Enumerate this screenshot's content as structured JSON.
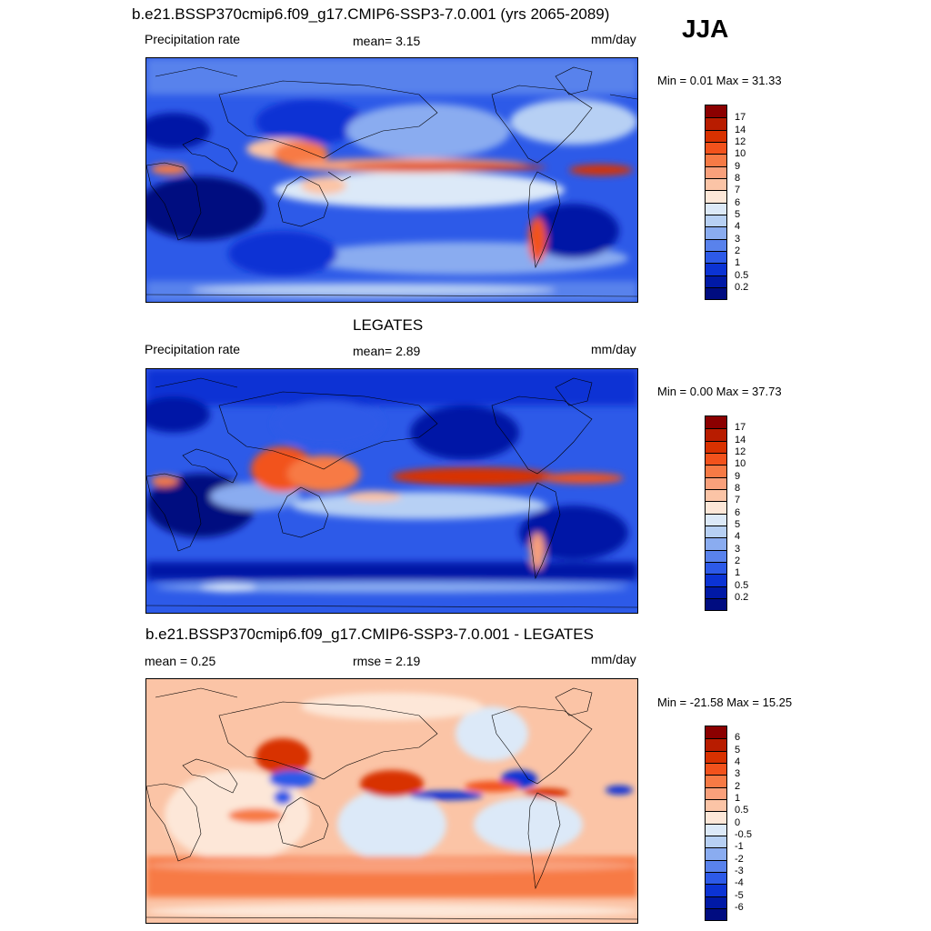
{
  "season": "JJA",
  "panels": [
    {
      "title": "b.e21.BSSP370cmip6.f09_g17.CMIP6-SSP3-7.0.001 (yrs 2065-2089)",
      "left_label": "Precipitation rate",
      "center_label": "mean=   3.15",
      "units": "mm/day",
      "minmax": "Min =   0.01 Max =  31.33",
      "colorbar": {
        "labels": [
          "17",
          "14",
          "12",
          "10",
          "9",
          "8",
          "7",
          "6",
          "5",
          "4",
          "3",
          "2",
          "1",
          "0.5",
          "0.2"
        ],
        "colors": [
          "#8b0000",
          "#b81c00",
          "#d83100",
          "#f2521c",
          "#f77a45",
          "#f9a07b",
          "#fbc4a6",
          "#fde7d8",
          "#dce9f8",
          "#b7d0f4",
          "#8aacf0",
          "#5982ec",
          "#2d5ae8",
          "#0b33d4",
          "#0019a6",
          "#000c80"
        ]
      }
    },
    {
      "title": "LEGATES",
      "left_label": "Precipitation rate",
      "center_label": "mean=   2.89",
      "units": "mm/day",
      "minmax": "Min =   0.00 Max =  37.73",
      "colorbar": {
        "labels": [
          "17",
          "14",
          "12",
          "10",
          "9",
          "8",
          "7",
          "6",
          "5",
          "4",
          "3",
          "2",
          "1",
          "0.5",
          "0.2"
        ],
        "colors": [
          "#8b0000",
          "#b81c00",
          "#d83100",
          "#f2521c",
          "#f77a45",
          "#f9a07b",
          "#fbc4a6",
          "#fde7d8",
          "#dce9f8",
          "#b7d0f4",
          "#8aacf0",
          "#5982ec",
          "#2d5ae8",
          "#0b33d4",
          "#0019a6",
          "#000c80"
        ]
      }
    },
    {
      "title": "b.e21.BSSP370cmip6.f09_g17.CMIP6-SSP3-7.0.001 - LEGATES",
      "left_label": "mean =   0.25",
      "center_label": "rmse =   2.19",
      "units": "mm/day",
      "minmax": "Min = -21.58 Max =  15.25",
      "colorbar": {
        "labels": [
          "6",
          "5",
          "4",
          "3",
          "2",
          "1",
          "0.5",
          "0",
          "-0.5",
          "-1",
          "-2",
          "-3",
          "-4",
          "-5",
          "-6"
        ],
        "colors": [
          "#8b0000",
          "#b81c00",
          "#d83100",
          "#f2521c",
          "#f77a45",
          "#f9a07b",
          "#fbc4a6",
          "#fde7d8",
          "#dce9f8",
          "#b7d0f4",
          "#8aacf0",
          "#5982ec",
          "#2d5ae8",
          "#0b33d4",
          "#0019a6",
          "#000c80"
        ]
      }
    }
  ]
}
